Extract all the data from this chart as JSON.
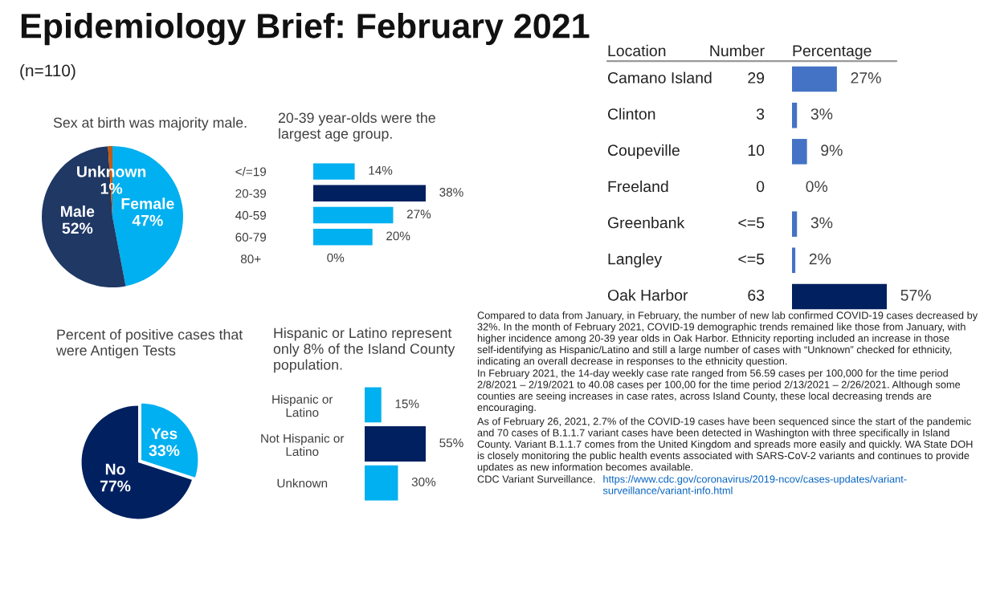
{
  "chart_data": [
    {
      "type": "other",
      "title": "Epidemiology Brief: February 2021",
      "subtitle": "(n=110)"
    },
    {
      "type": "pie",
      "title": "Sex at birth was majority male.",
      "categories": [
        "Female",
        "Male",
        "Unknown"
      ],
      "values": [
        47,
        52,
        1
      ],
      "value_labels": [
        "47%",
        "52%",
        "1%"
      ],
      "colors": [
        "#00b0f0",
        "#1f3864",
        "#c55a11"
      ]
    },
    {
      "type": "bar",
      "orientation": "horizontal",
      "title": "20-39 year-olds were the largest age group.",
      "categories": [
        "</=19",
        "20-39",
        "40-59",
        "60-79",
        "80+"
      ],
      "values": [
        14,
        38,
        27,
        20,
        0
      ],
      "value_labels": [
        "14%",
        "38%",
        "27%",
        "20%",
        "0%"
      ],
      "colors": [
        "#00b0f0",
        "#002060",
        "#00b0f0",
        "#00b0f0",
        "#00b0f0"
      ],
      "tick_labels": "y"
    },
    {
      "type": "pie",
      "title": "Percent of positive cases that were Antigen Tests",
      "categories": [
        "Yes",
        "No"
      ],
      "values": [
        33,
        77
      ],
      "value_labels": [
        "33%",
        "77%"
      ],
      "colors": [
        "#00b0f0",
        "#002060"
      ]
    },
    {
      "type": "bar",
      "orientation": "horizontal",
      "title": "Hispanic or Latino represent only 8% of the Island County population.",
      "categories": [
        "Hispanic or Latino",
        "Not Hispanic or Latino",
        "Unknown"
      ],
      "values": [
        15,
        55,
        30
      ],
      "value_labels": [
        "15%",
        "55%",
        "30%"
      ],
      "colors": [
        "#00b0f0",
        "#002060",
        "#00b0f0"
      ],
      "tick_labels": "y"
    },
    {
      "type": "bar",
      "orientation": "horizontal",
      "ylabel": "Location",
      "xlabel": "Percentage",
      "categories": [
        "Camano Island",
        "Clinton",
        "Coupeville",
        "Freeland",
        "Greenbank",
        "Langley",
        "Oak Harbor"
      ],
      "values": [
        27,
        3,
        9,
        0,
        3,
        2,
        57
      ],
      "value_labels": [
        "27%",
        "3%",
        "9%",
        "0%",
        "3%",
        "2%",
        "57%"
      ],
      "colors": [
        "#4472c4",
        "#4472c4",
        "#4472c4",
        "#4472c4",
        "#4472c4",
        "#4472c4",
        "#002060"
      ],
      "tick_labels": "y",
      "annotations": [
        "Number",
        "29",
        "3",
        "10",
        "0",
        "<=5",
        "<=5",
        "63"
      ]
    },
    {
      "type": "other",
      "annotations": [
        "Compared to data from January, in February, the number of new lab confirmed COVID-19 cases decreased by 32%. In the month of February 2021, COVID-19 demographic trends remained like those from January, with higher incidence among 20-39 year olds in Oak Harbor. Ethnicity reporting included an increase in those self-identifying as Hispanic/Latino and still a large number of cases with “Unknown” checked for ethnicity, indicating an overall decrease in responses to the ethnicity question.",
        "In February 2021, the 14-day weekly case rate ranged from 56.59 cases per 100,000 for the time period 2/8/2021 – 2/19/2021 to 40.08 cases per 100,00 for the time period 2/13/2021 – 2/26/2021. Although some counties are seeing increases in case rates, across Island County, these local decreasing trends are encouraging.",
        "As of February 26, 2021, 2.7% of the COVID-19 cases have been sequenced since the start of the pandemic and 70 cases of B.1.1.7 variant cases have been detected in Washington with three specifically in Island County. Variant B.1.1.7 comes from the United Kingdom and spreads more easily and quickly. WA State DOH is closely monitoring the public health events associated with SARS-CoV-2 variants and continues to provide updates as new information becomes available.",
        "CDC Variant Surveillance.",
        "https://www.cdc.gov/coronavirus/2019-ncov/cases-updates/variant-surveillance/variant-info.html"
      ]
    }
  ]
}
